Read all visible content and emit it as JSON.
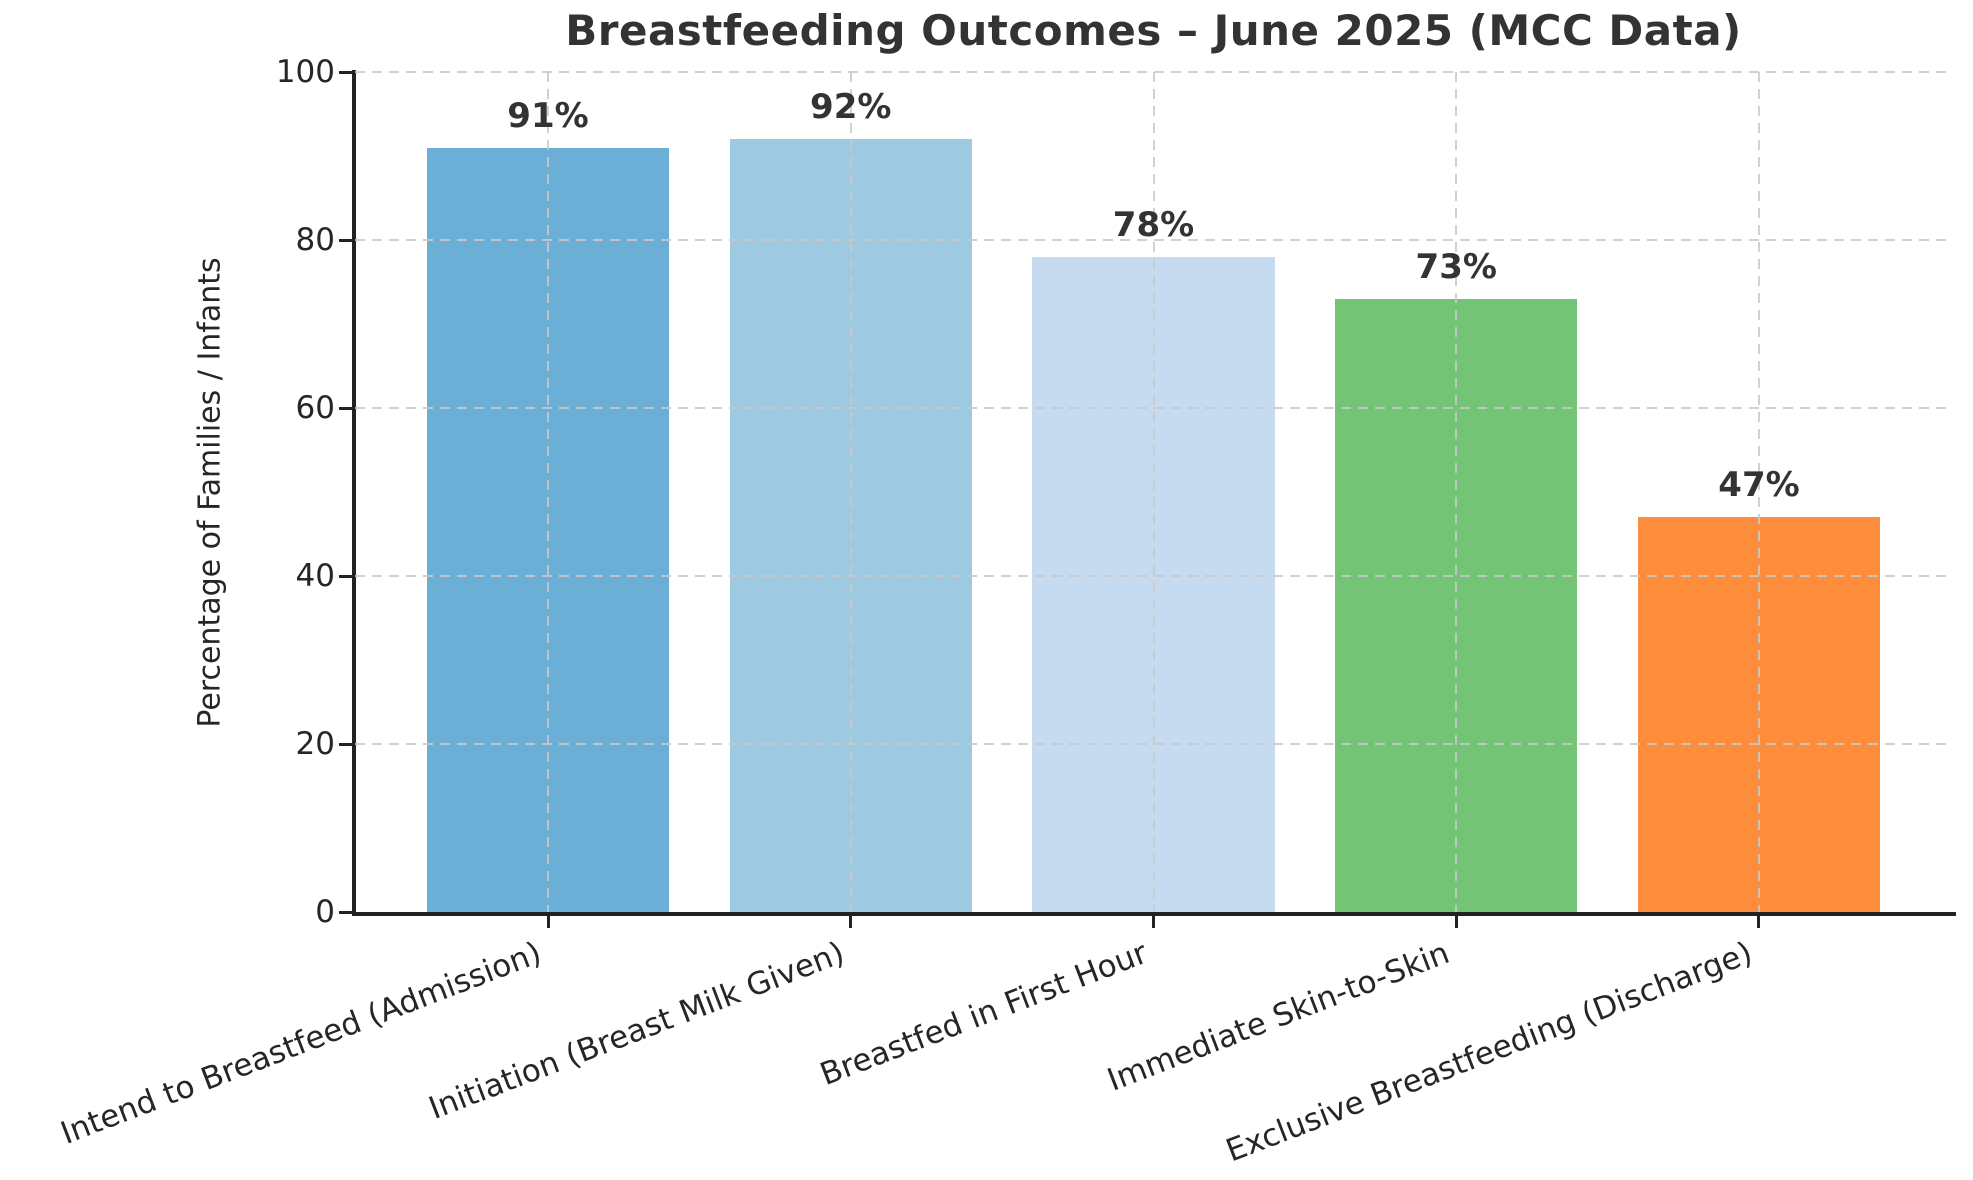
{
  "chart_data": {
    "type": "bar",
    "title": "Breastfeeding Outcomes – June 2025 (MCC Data)",
    "ylabel": "Percentage of Families / Infants",
    "xlabel": "",
    "categories": [
      "Intend to Breastfeed (Admission)",
      "Initiation (Breast Milk Given)",
      "Breastfed in First Hour",
      "Immediate Skin-to-Skin",
      "Exclusive Breastfeeding (Discharge)"
    ],
    "values": [
      91,
      92,
      78,
      73,
      47
    ],
    "value_labels": [
      "91%",
      "92%",
      "78%",
      "73%",
      "47%"
    ],
    "bar_colors": [
      "#6baed6",
      "#9ecae1",
      "#c6dbef",
      "#74c476",
      "#fd8d3c"
    ],
    "ylim": [
      0,
      100
    ],
    "yticks": [
      0,
      20,
      40,
      60,
      80,
      100
    ],
    "grid": "dashed-both-axes",
    "legend": "none",
    "xtick_rotation_deg": 21
  },
  "style": {
    "background": "#ffffff",
    "text_color": "#262626",
    "title_color": "#333333",
    "grid_color": "#c9c9c9",
    "spine_color": "#222222"
  }
}
